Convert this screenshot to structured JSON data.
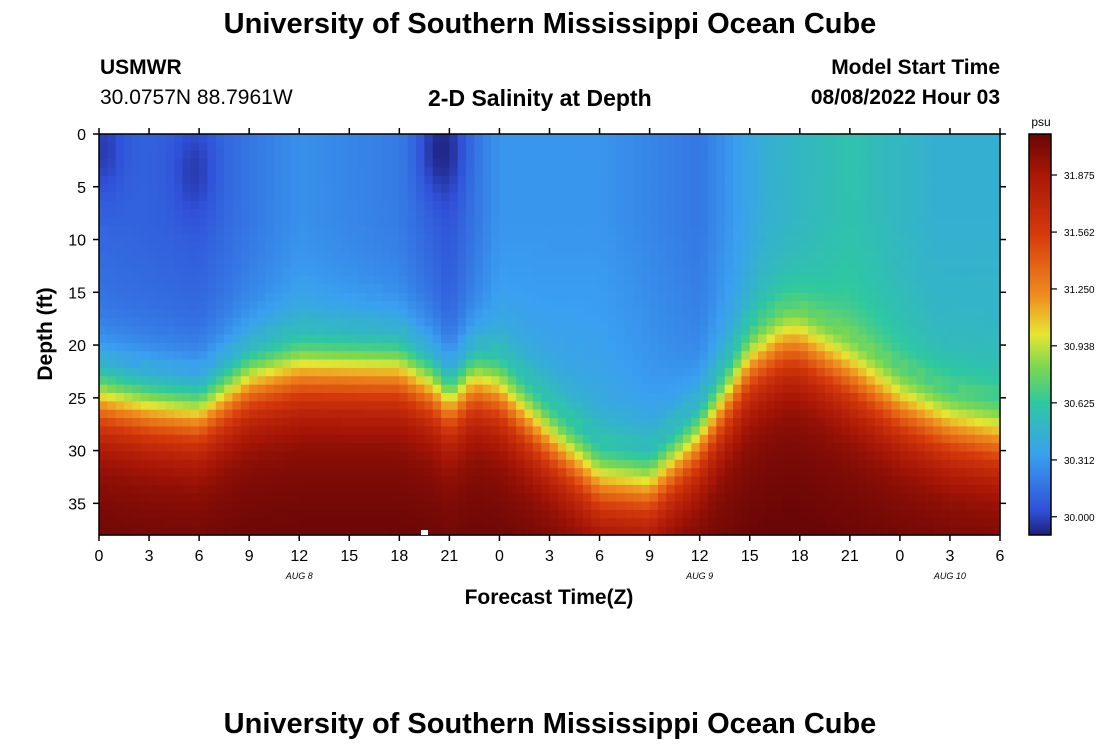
{
  "title": "University of Southern Mississippi Ocean Cube",
  "station": {
    "name": "USMWR",
    "coords": "30.0757N  88.7961W"
  },
  "subtitle": "2-D Salinity at Depth",
  "model": {
    "label": "Model Start Time",
    "value": "08/08/2022 Hour 03"
  },
  "footer_title": "University of Southern Mississippi Ocean Cube",
  "colors": {
    "low": "#1e2a8c",
    "mid": "#3aa0f0",
    "green": "#2ec8a0",
    "yellow": "#e6e632",
    "high": "#c42a08",
    "max": "#6a0606"
  },
  "chart_data": {
    "type": "heatmap",
    "xlabel": "Forecast Time(Z)",
    "ylabel": "Depth (ft)",
    "x_ticks": [
      "0",
      "3",
      "6",
      "9",
      "12",
      "15",
      "18",
      "21",
      "0",
      "3",
      "6",
      "9",
      "12",
      "15",
      "18",
      "21",
      "0",
      "3",
      "6"
    ],
    "x_range_hours": [
      0,
      54
    ],
    "date_labels": [
      {
        "label": "AUG 8",
        "hour": 12
      },
      {
        "label": "AUG 9",
        "hour": 36
      },
      {
        "label": "AUG 10",
        "hour": 51
      }
    ],
    "y_ticks": [
      "0",
      "5",
      "10",
      "15",
      "20",
      "25",
      "30",
      "35"
    ],
    "y_range_ft": [
      0,
      38
    ],
    "colorbar": {
      "unit": "psu",
      "ticks": [
        "31.875",
        "31.562",
        "31.250",
        "30.938",
        "30.625",
        "30.312",
        "30.000"
      ],
      "range": [
        29.9,
        32.1
      ]
    },
    "salinity_model": {
      "interface_depth_ft": [
        [
          0,
          25.0
        ],
        [
          3,
          26.0
        ],
        [
          6,
          26.5
        ],
        [
          9,
          23.5
        ],
        [
          12,
          22.5
        ],
        [
          15,
          22.5
        ],
        [
          18,
          22.5
        ],
        [
          20,
          24.0
        ],
        [
          21,
          25.5
        ],
        [
          22.5,
          23.5
        ],
        [
          24,
          24.5
        ],
        [
          27,
          29.0
        ],
        [
          30,
          33.0
        ],
        [
          33,
          33.5
        ],
        [
          36,
          29.0
        ],
        [
          39,
          22.0
        ],
        [
          41,
          20.0
        ],
        [
          42,
          20.0
        ],
        [
          45,
          23.0
        ],
        [
          48,
          26.0
        ],
        [
          51,
          28.0
        ],
        [
          54,
          29.0
        ]
      ],
      "surface_psu": [
        [
          0,
          30.12
        ],
        [
          6,
          30.08
        ],
        [
          12,
          30.28
        ],
        [
          18,
          30.2
        ],
        [
          21,
          30.05
        ],
        [
          24,
          30.3
        ],
        [
          30,
          30.3
        ],
        [
          36,
          30.18
        ],
        [
          40,
          30.45
        ],
        [
          45,
          30.58
        ],
        [
          50,
          30.45
        ],
        [
          54,
          30.45
        ]
      ],
      "bottom_psu": 32.0,
      "low_spots": [
        {
          "hour": 0.3,
          "depth_ft": 1.5,
          "psu": 29.98
        },
        {
          "hour": 5.7,
          "depth_ft": 3.5,
          "psu": 29.98
        },
        {
          "hour": 20.5,
          "depth_ft": 1.5,
          "psu": 29.92
        }
      ]
    }
  }
}
